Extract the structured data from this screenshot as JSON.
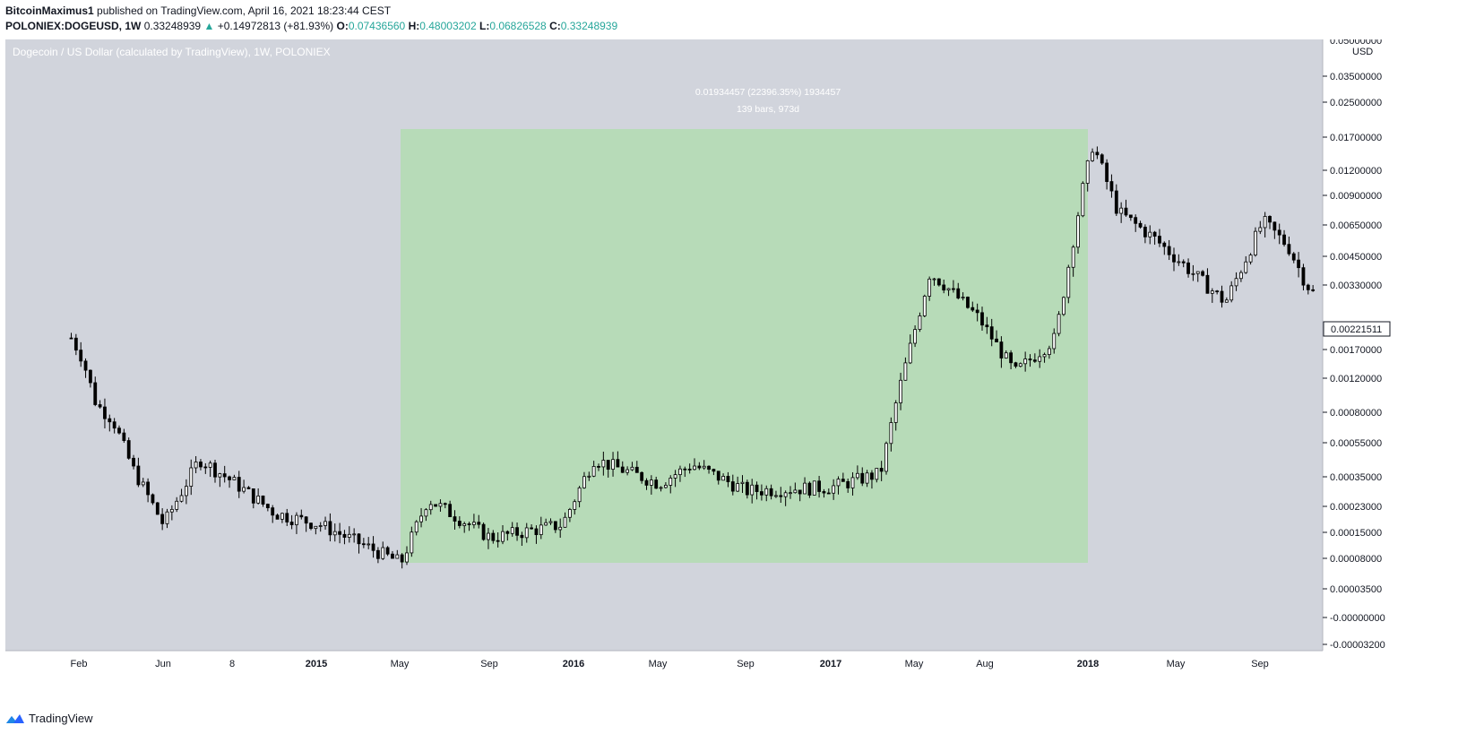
{
  "header": {
    "author": "BitcoinMaximus1",
    "published_text": "published on TradingView.com, April 16, 2021 18:23:44 CEST",
    "symbol": "POLONIEX:DOGEUSD, 1W",
    "last": "0.33248939",
    "arrow": "▲",
    "change": "+0.14972813 (+81.93%)",
    "o_label": "O:",
    "o_value": "0.07436560",
    "h_label": "H:",
    "h_value": "0.48003202",
    "l_label": "L:",
    "l_value": "0.06826528",
    "c_label": "C:",
    "c_value": "0.33248939"
  },
  "chart_title": "Dogecoin / US Dollar (calculated by TradingView), 1W, POLONIEX",
  "measure": {
    "line1": "0.01934457 (22396.35%) 1934457",
    "line2": "139 bars, 973d"
  },
  "price_axis": {
    "unit_label": "USD",
    "top_label": "0.05000000",
    "ticks": [
      "0.03500000",
      "0.02500000",
      "0.01700000",
      "0.01200000",
      "0.00900000",
      "0.00650000",
      "0.00450000",
      "0.00330000",
      "0.00170000",
      "0.00120000",
      "0.00080000",
      "0.00055000",
      "0.00035000",
      "0.00023000",
      "0.00015000",
      "0.00008000",
      "0.00003500",
      "-0.00000000",
      "-0.00003200"
    ],
    "current_price": "0.00221511"
  },
  "time_axis": [
    "Feb",
    "Jun",
    "8",
    "2015",
    "May",
    "Sep",
    "2016",
    "May",
    "Sep",
    "2017",
    "May",
    "Aug",
    "2018",
    "May",
    "Sep"
  ],
  "footer": {
    "brand": "TradingView"
  },
  "colors": {
    "background": "#d1d4dc",
    "measure_fill": "#b7dbb8",
    "up_candle": "#ffffff",
    "down_candle": "#000000",
    "header_green": "#26a69a"
  },
  "chart_data": {
    "type": "candlestick",
    "title": "Dogecoin / US Dollar (calculated by TradingView), 1W, POLONIEX",
    "ylabel": "USD",
    "scale": "log",
    "x_axis_labels": [
      "Feb",
      "Jun",
      "8",
      "2015",
      "May",
      "Sep",
      "2016",
      "May",
      "Sep",
      "2017",
      "May",
      "Aug",
      "2018",
      "May",
      "Sep"
    ],
    "y_axis_ticks": [
      0.05,
      0.035,
      0.025,
      0.017,
      0.012,
      0.009,
      0.0065,
      0.0045,
      0.0033,
      0.0017,
      0.0012,
      0.0008,
      0.00055,
      0.00035,
      0.00023,
      0.00015,
      8e-05,
      3.5e-05,
      0,
      -3.2e-05
    ],
    "measured_range": {
      "start": "May 2015",
      "end": "2018",
      "low": 8e-05,
      "high": 0.02,
      "change": "0.01934457 (22396.35%) 1934457",
      "bars": 139,
      "days": 973
    },
    "last_price": 0.00221511,
    "series_close_approx": [
      {
        "t": "Jan 2014",
        "v": 0.0014
      },
      {
        "t": "Feb 2014",
        "v": 0.0011
      },
      {
        "t": "Mar 2014",
        "v": 0.0006
      },
      {
        "t": "Apr 2014",
        "v": 0.0005
      },
      {
        "t": "Jun 2014",
        "v": 0.00027
      },
      {
        "t": "Aug 2014",
        "v": 0.00013
      },
      {
        "t": "Aug 2014",
        "v": 0.0003
      },
      {
        "t": "Oct 2014",
        "v": 0.00022
      },
      {
        "t": "Dec 2014",
        "v": 0.00015
      },
      {
        "t": "Feb 2015",
        "v": 0.00013
      },
      {
        "t": "May 2015",
        "v": 8e-05
      },
      {
        "t": "Jun 2015",
        "v": 0.00018
      },
      {
        "t": "Sep 2015",
        "v": 0.00011
      },
      {
        "t": "Dec 2015",
        "v": 0.00013
      },
      {
        "t": "Jan 2016",
        "v": 0.0003
      },
      {
        "t": "May 2016",
        "v": 0.00022
      },
      {
        "t": "Jul 2016",
        "v": 0.00028
      },
      {
        "t": "Sep 2016",
        "v": 0.0002
      },
      {
        "t": "Jan 2017",
        "v": 0.00021
      },
      {
        "t": "Mar 2017",
        "v": 0.00025
      },
      {
        "t": "Apr 2017",
        "v": 0.0007
      },
      {
        "t": "May 2017",
        "v": 0.0032
      },
      {
        "t": "Jun 2017",
        "v": 0.0028
      },
      {
        "t": "Jul 2017",
        "v": 0.0018
      },
      {
        "t": "Sep 2017",
        "v": 0.0009
      },
      {
        "t": "Nov 2017",
        "v": 0.0014
      },
      {
        "t": "Dec 2017",
        "v": 0.009
      },
      {
        "t": "Jan 2018",
        "v": 0.0165
      },
      {
        "t": "Feb 2018",
        "v": 0.007
      },
      {
        "t": "Apr 2018",
        "v": 0.005
      },
      {
        "t": "Jun 2018",
        "v": 0.003
      },
      {
        "t": "Aug 2018",
        "v": 0.0022
      },
      {
        "t": "Sep 2018",
        "v": 0.0062
      },
      {
        "t": "Oct 2018",
        "v": 0.0045
      },
      {
        "t": "Nov 2018",
        "v": 0.0028
      },
      {
        "t": "Dec 2018",
        "v": 0.00221511
      }
    ]
  }
}
